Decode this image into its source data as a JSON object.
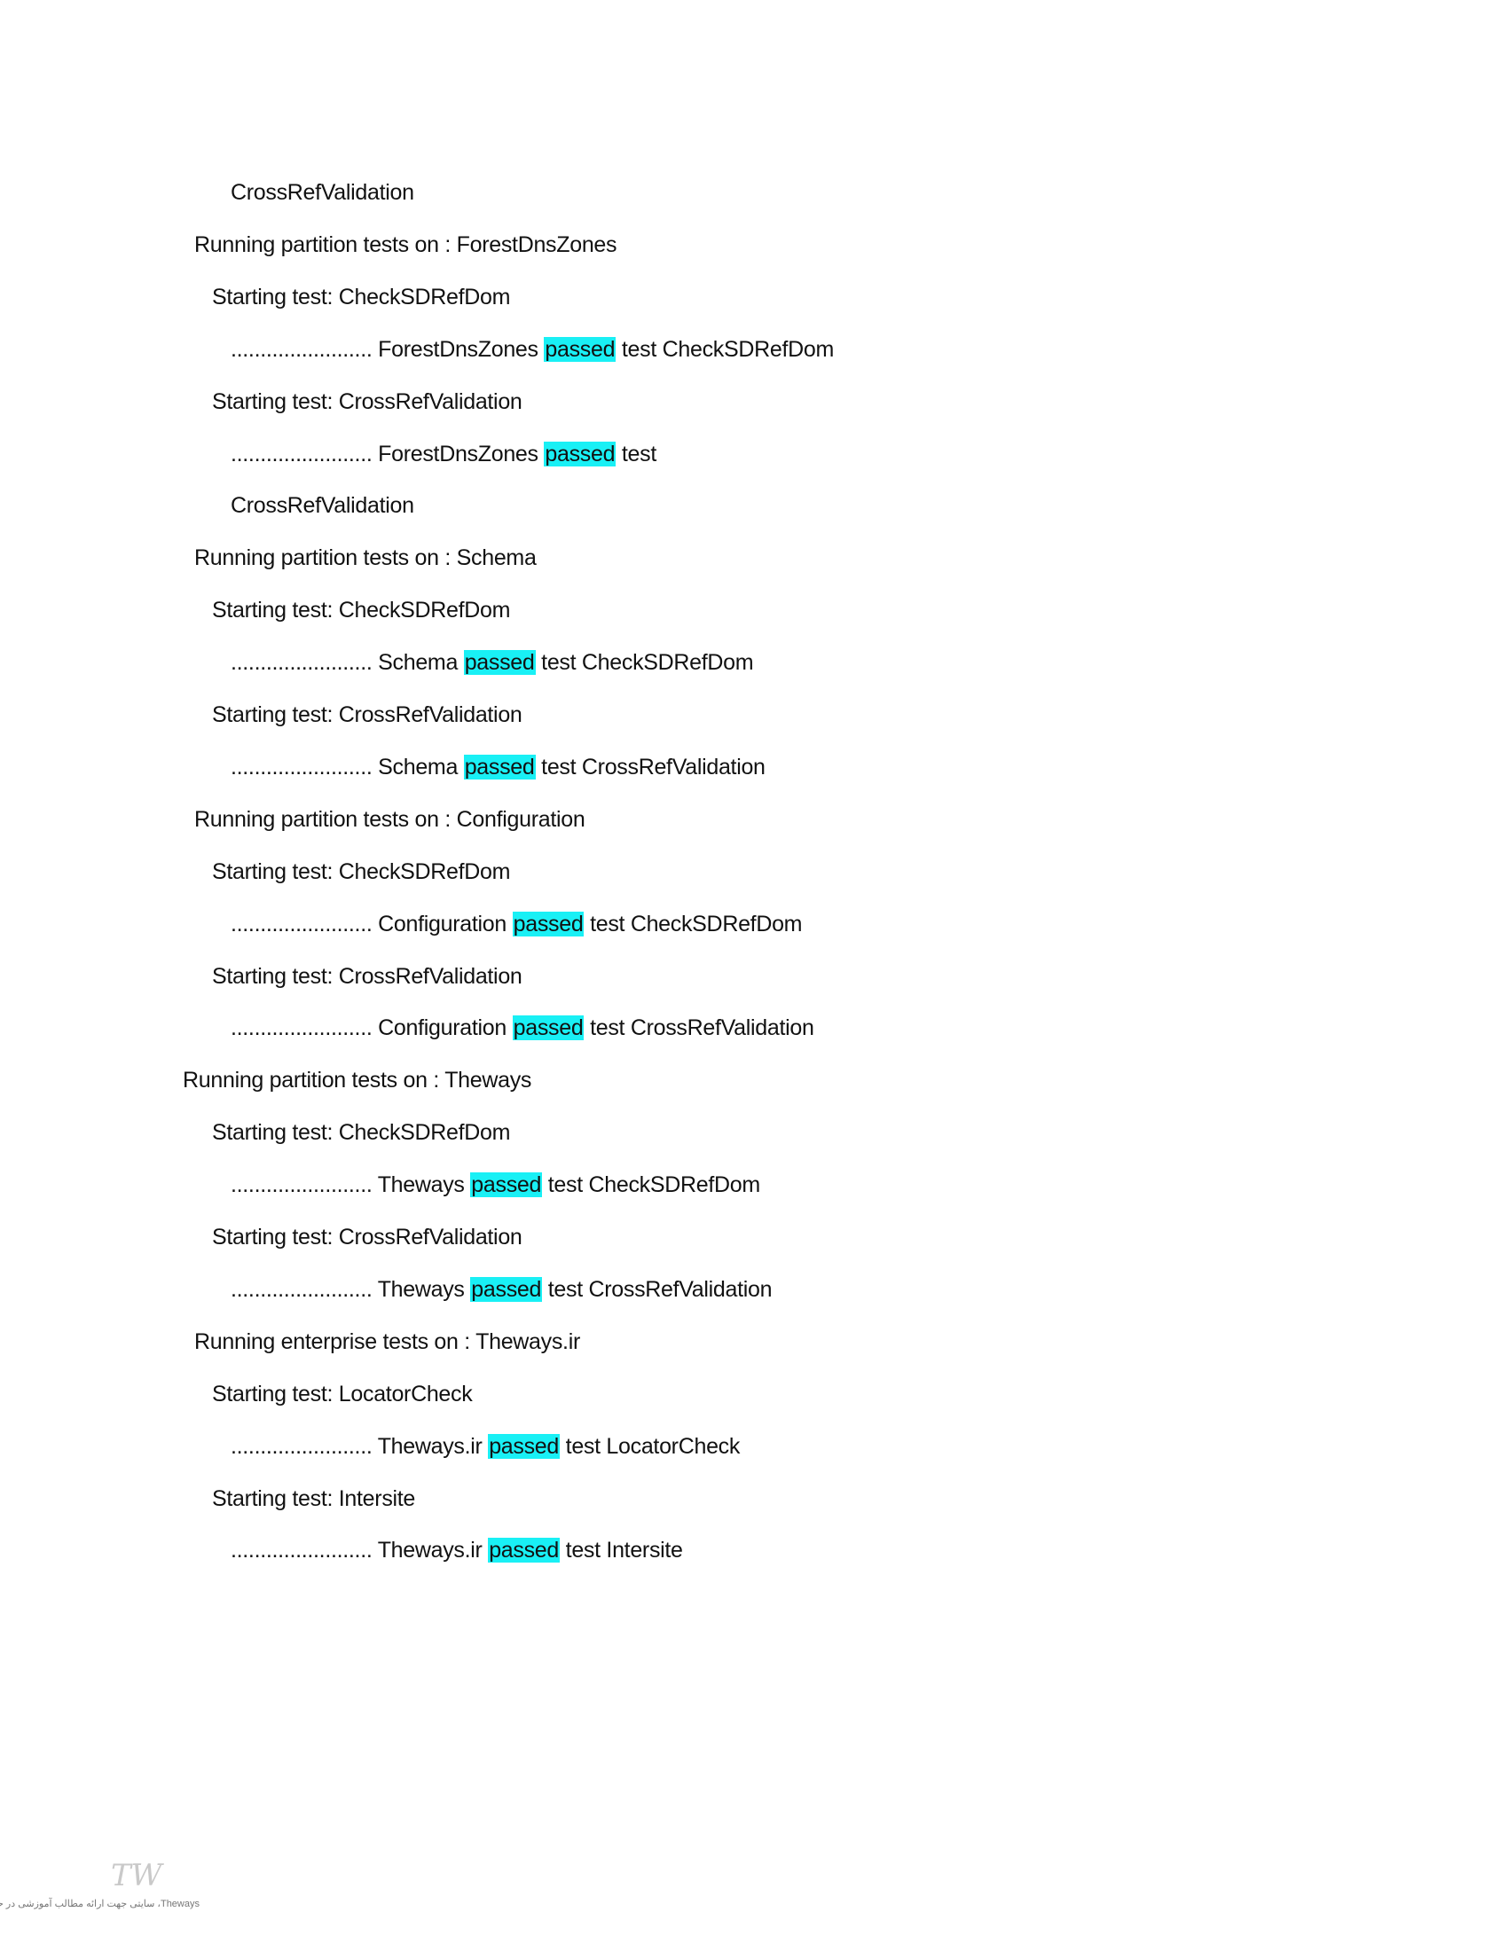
{
  "highlight_color": "#19f0f5",
  "lines": [
    {
      "indent": 3,
      "pre": "CrossRefValidation"
    },
    {
      "indent": 1,
      "pre": "Running partition tests on : ForestDnsZones"
    },
    {
      "indent": 2,
      "pre": "Starting test: CheckSDRefDom"
    },
    {
      "indent": 3,
      "pre": "........................ ForestDnsZones ",
      "hl": "passed",
      "post": " test CheckSDRefDom"
    },
    {
      "indent": 2,
      "pre": "Starting test: CrossRefValidation"
    },
    {
      "indent": 3,
      "pre": "........................ ForestDnsZones ",
      "hl": "passed",
      "post": " test"
    },
    {
      "indent": 3,
      "pre": "CrossRefValidation"
    },
    {
      "indent": 1,
      "pre": "Running partition tests on : Schema"
    },
    {
      "indent": 2,
      "pre": "Starting test: CheckSDRefDom"
    },
    {
      "indent": 3,
      "pre": "........................ Schema ",
      "hl": "passed",
      "post": " test CheckSDRefDom"
    },
    {
      "indent": 2,
      "pre": "Starting test: CrossRefValidation"
    },
    {
      "indent": 3,
      "pre": "........................ Schema ",
      "hl": "passed",
      "post": " test CrossRefValidation"
    },
    {
      "indent": 1,
      "pre": "Running partition tests on : Configuration"
    },
    {
      "indent": 2,
      "pre": "Starting test: CheckSDRefDom"
    },
    {
      "indent": 3,
      "pre": "........................ Configuration ",
      "hl": "passed",
      "post": " test CheckSDRefDom"
    },
    {
      "indent": 2,
      "pre": "Starting test: CrossRefValidation"
    },
    {
      "indent": 3,
      "pre": "........................ Configuration ",
      "hl": "passed",
      "post": " test CrossRefValidation"
    },
    {
      "indent": 0,
      "pre": "Running partition tests on : Theways"
    },
    {
      "indent": 2,
      "pre": "Starting test: CheckSDRefDom"
    },
    {
      "indent": 3,
      "pre": "........................ Theways ",
      "hl": "passed",
      "post": " test CheckSDRefDom"
    },
    {
      "indent": 2,
      "pre": "Starting test: CrossRefValidation"
    },
    {
      "indent": 3,
      "pre": "........................ Theways ",
      "hl": "passed",
      "post": " test CrossRefValidation"
    },
    {
      "indent": 1,
      "pre": "Running enterprise tests on : Theways.ir"
    },
    {
      "indent": 2,
      "pre": "Starting test: LocatorCheck"
    },
    {
      "indent": 3,
      "pre": "........................ Theways.ir ",
      "hl": "passed",
      "post": " test LocatorCheck"
    },
    {
      "indent": 2,
      "pre": "Starting test: Intersite"
    },
    {
      "indent": 3,
      "pre": "........................ Theways.ir ",
      "hl": "passed",
      "post": " test Intersite"
    }
  ],
  "watermark": {
    "logo_text": "TW",
    "caption": "Theways، سایتی جهت ارائه مطالب آموزشی در حوزه IT"
  }
}
